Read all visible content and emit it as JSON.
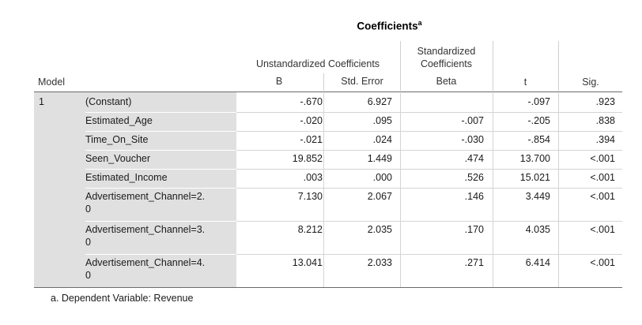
{
  "title": "Coefficients",
  "title_superscript": "a",
  "header": {
    "model": "Model",
    "unstd_group": "Unstandardized Coefficients",
    "b": "B",
    "std_error": "Std. Error",
    "std_group_line1": "Standardized",
    "std_group_line2": "Coefficients",
    "beta": "Beta",
    "t": "t",
    "sig": "Sig."
  },
  "model_number": "1",
  "rows": [
    {
      "label": "(Constant)",
      "label2": "",
      "b": "-.670",
      "se": "6.927",
      "beta": "",
      "t": "-.097",
      "sig": ".923"
    },
    {
      "label": "Estimated_Age",
      "label2": "",
      "b": "-.020",
      "se": ".095",
      "beta": "-.007",
      "t": "-.205",
      "sig": ".838"
    },
    {
      "label": "Time_On_Site",
      "label2": "",
      "b": "-.021",
      "se": ".024",
      "beta": "-.030",
      "t": "-.854",
      "sig": ".394"
    },
    {
      "label": "Seen_Voucher",
      "label2": "",
      "b": "19.852",
      "se": "1.449",
      "beta": ".474",
      "t": "13.700",
      "sig": "<.001"
    },
    {
      "label": "Estimated_Income",
      "label2": "",
      "b": ".003",
      "se": ".000",
      "beta": ".526",
      "t": "15.021",
      "sig": "<.001"
    },
    {
      "label": "Advertisement_Channel=2.",
      "label2": "0",
      "b": "7.130",
      "se": "2.067",
      "beta": ".146",
      "t": "3.449",
      "sig": "<.001"
    },
    {
      "label": "Advertisement_Channel=3.",
      "label2": "0",
      "b": "8.212",
      "se": "2.035",
      "beta": ".170",
      "t": "4.035",
      "sig": "<.001"
    },
    {
      "label": "Advertisement_Channel=4.",
      "label2": "0",
      "b": "13.041",
      "se": "2.033",
      "beta": ".271",
      "t": "6.414",
      "sig": "<.001"
    }
  ],
  "footnote": "a. Dependent Variable: Revenue"
}
